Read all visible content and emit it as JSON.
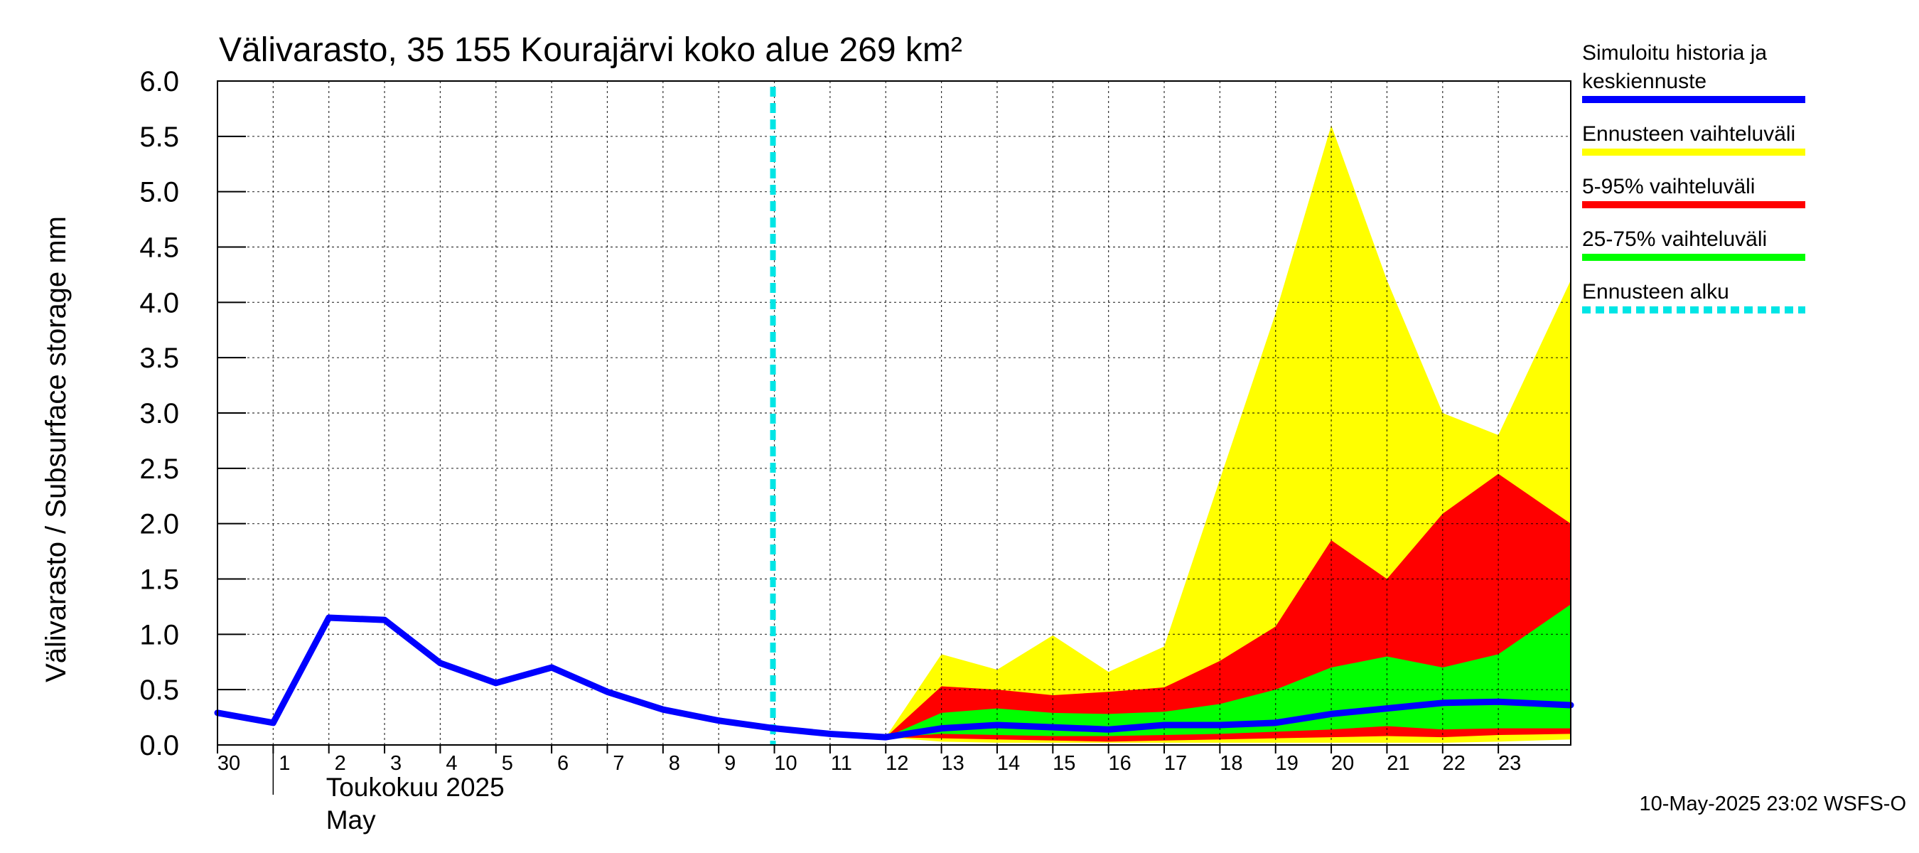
{
  "chart_data": {
    "type": "area",
    "title": "Välivarasto, 35 155 Kourajärvi koko alue 269 km²",
    "ylabel": "Välivarasto / Subsurface storage  mm",
    "ylim": [
      0,
      6
    ],
    "yticks": [
      "0.0",
      "0.5",
      "1.0",
      "1.5",
      "2.0",
      "2.5",
      "3.0",
      "3.5",
      "4.0",
      "4.5",
      "5.0",
      "5.5",
      "6.0"
    ],
    "xticks": [
      "30",
      "1",
      "2",
      "3",
      "4",
      "5",
      "6",
      "7",
      "8",
      "9",
      "10",
      "11",
      "12",
      "13",
      "14",
      "15",
      "16",
      "17",
      "18",
      "19",
      "20",
      "21",
      "22",
      "23"
    ],
    "xlim": [
      0,
      24.3
    ],
    "month_label": "Toukokuu  2025",
    "month_label_en": "May",
    "grid": true,
    "legend_position": "right",
    "forecast_start": 10,
    "series": [
      {
        "name": "Simuloitu historia ja keskiennuste",
        "color": "#0000ff",
        "x": [
          0,
          1,
          2,
          3,
          4,
          5,
          6,
          7,
          8,
          9,
          10,
          11,
          12,
          13,
          14,
          15,
          16,
          17,
          18,
          19,
          20,
          21,
          22,
          23,
          24.3
        ],
        "values": [
          0.29,
          0.2,
          1.15,
          1.13,
          0.74,
          0.56,
          0.7,
          0.48,
          0.32,
          0.22,
          0.15,
          0.1,
          0.07,
          0.15,
          0.18,
          0.16,
          0.14,
          0.18,
          0.18,
          0.2,
          0.28,
          0.33,
          0.38,
          0.39,
          0.36
        ]
      }
    ],
    "bands": [
      {
        "name": "Ennusteen vaihteluväli",
        "color": "#ffff00",
        "x": [
          12,
          13,
          14,
          15,
          16,
          17,
          18,
          19,
          20,
          21,
          22,
          23,
          24.3
        ],
        "upper": [
          0.07,
          0.82,
          0.68,
          0.99,
          0.66,
          0.89,
          2.4,
          3.9,
          5.6,
          4.2,
          3.0,
          2.8,
          4.2
        ],
        "lower": [
          0.07,
          0.03,
          0.02,
          0.02,
          0.02,
          0.02,
          0.02,
          0.02,
          0.02,
          0.02,
          0.02,
          0.03,
          0.05
        ]
      },
      {
        "name": "5-95% vaihteluväli",
        "color": "#ff0000",
        "x": [
          12,
          13,
          14,
          15,
          16,
          17,
          18,
          19,
          20,
          21,
          22,
          23,
          24.3
        ],
        "upper": [
          0.07,
          0.53,
          0.5,
          0.45,
          0.48,
          0.52,
          0.76,
          1.07,
          1.85,
          1.5,
          2.09,
          2.45,
          2.0
        ],
        "lower": [
          0.07,
          0.06,
          0.05,
          0.04,
          0.03,
          0.04,
          0.05,
          0.06,
          0.07,
          0.08,
          0.07,
          0.09,
          0.1
        ]
      },
      {
        "name": "25-75% vaihteluväli",
        "color": "#00ff00",
        "x": [
          12,
          13,
          14,
          15,
          16,
          17,
          18,
          19,
          20,
          21,
          22,
          23,
          24.3
        ],
        "upper": [
          0.07,
          0.29,
          0.33,
          0.29,
          0.28,
          0.3,
          0.37,
          0.5,
          0.7,
          0.8,
          0.7,
          0.82,
          1.27
        ],
        "lower": [
          0.07,
          0.1,
          0.09,
          0.08,
          0.08,
          0.09,
          0.1,
          0.12,
          0.14,
          0.17,
          0.14,
          0.15,
          0.15
        ]
      }
    ],
    "legend": [
      {
        "label_lines": [
          "Simuloitu historia ja",
          "keskiennuste"
        ],
        "color": "#0000ff",
        "style": "solid"
      },
      {
        "label_lines": [
          "Ennusteen vaihteluväli"
        ],
        "color": "#ffff00",
        "style": "solid"
      },
      {
        "label_lines": [
          "5-95% vaihteluväli"
        ],
        "color": "#ff0000",
        "style": "solid"
      },
      {
        "label_lines": [
          "25-75% vaihteluväli"
        ],
        "color": "#00ff00",
        "style": "solid"
      },
      {
        "label_lines": [
          "Ennusteen alku"
        ],
        "color": "#00e5e5",
        "style": "dashed"
      }
    ],
    "footer": "10-May-2025 23:02 WSFS-O"
  }
}
